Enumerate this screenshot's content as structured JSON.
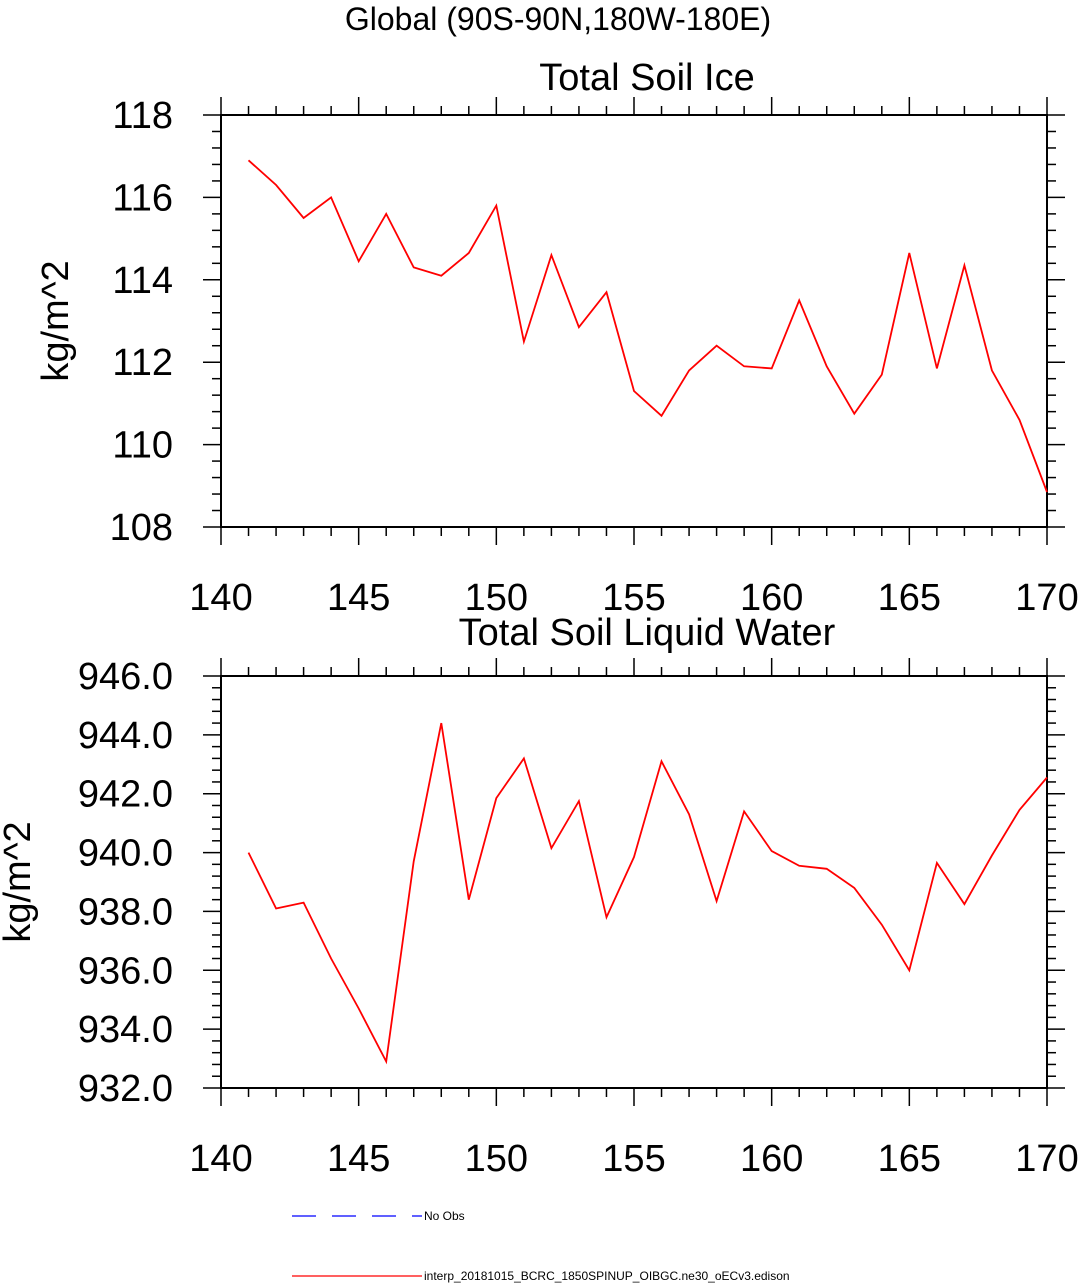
{
  "suptitle": "Global (90S-90N,180W-180E)",
  "colors": {
    "model": "#ff0000",
    "obs": "#0000ff",
    "axis": "#000000"
  },
  "chart_data": [
    {
      "type": "line",
      "title": "Total Soil Ice",
      "xlabel": "",
      "ylabel": "kg/m^2",
      "xlim": [
        140,
        170
      ],
      "ylim": [
        108,
        118
      ],
      "x_major_ticks": [
        140,
        145,
        150,
        155,
        160,
        165,
        170
      ],
      "x_tick_labels": [
        "140",
        "145",
        "150",
        "155",
        "160",
        "165",
        "170"
      ],
      "y_major_ticks": [
        108,
        110,
        112,
        114,
        116,
        118
      ],
      "y_tick_labels": [
        "108",
        "110",
        "112",
        "114",
        "116",
        "118"
      ],
      "y_minor_step": 0.4,
      "x_minor_step": 1,
      "grid": false,
      "series": [
        {
          "name": "interp_20181015_BCRC_1850SPINUP_OIBGC.ne30_oECv3.edison",
          "color": "#ff0000",
          "x": [
            141,
            142,
            143,
            144,
            145,
            146,
            147,
            148,
            149,
            150,
            151,
            152,
            153,
            154,
            155,
            156,
            157,
            158,
            159,
            160,
            161,
            162,
            163,
            164,
            165,
            166,
            167,
            168,
            169,
            170
          ],
          "values": [
            116.9,
            116.3,
            115.5,
            116.0,
            114.45,
            115.6,
            114.3,
            114.1,
            114.65,
            115.8,
            112.5,
            114.6,
            112.85,
            113.7,
            111.3,
            110.7,
            111.8,
            112.4,
            111.9,
            111.85,
            113.5,
            111.9,
            110.75,
            111.7,
            114.65,
            111.85,
            114.35,
            111.8,
            110.6,
            108.85
          ]
        }
      ]
    },
    {
      "type": "line",
      "title": "Total Soil Liquid Water",
      "xlabel": "",
      "ylabel": "kg/m^2",
      "xlim": [
        140,
        170
      ],
      "ylim": [
        932,
        946
      ],
      "x_major_ticks": [
        140,
        145,
        150,
        155,
        160,
        165,
        170
      ],
      "x_tick_labels": [
        "140",
        "145",
        "150",
        "155",
        "160",
        "165",
        "170"
      ],
      "y_major_ticks": [
        932,
        934,
        936,
        938,
        940,
        942,
        944,
        946
      ],
      "y_tick_labels": [
        "932.0",
        "934.0",
        "936.0",
        "938.0",
        "940.0",
        "942.0",
        "944.0",
        "946.0"
      ],
      "y_minor_step": 0.4,
      "x_minor_step": 1,
      "grid": false,
      "series": [
        {
          "name": "interp_20181015_BCRC_1850SPINUP_OIBGC.ne30_oECv3.edison",
          "color": "#ff0000",
          "x": [
            141,
            142,
            143,
            144,
            145,
            146,
            147,
            148,
            149,
            150,
            151,
            152,
            153,
            154,
            155,
            156,
            157,
            158,
            159,
            160,
            161,
            162,
            163,
            164,
            165,
            166,
            167,
            168,
            169,
            170
          ],
          "values": [
            940.0,
            938.1,
            938.3,
            936.4,
            934.7,
            932.9,
            939.7,
            944.4,
            938.4,
            941.85,
            943.2,
            940.15,
            941.75,
            937.8,
            939.85,
            943.1,
            941.3,
            938.35,
            941.4,
            940.05,
            939.55,
            939.45,
            938.8,
            937.55,
            936.0,
            939.65,
            938.25,
            939.9,
            941.45,
            942.55
          ]
        }
      ]
    }
  ],
  "legend": [
    {
      "label": "No Obs",
      "color": "#0000ff",
      "style": "dashed"
    },
    {
      "label": "interp_20181015_BCRC_1850SPINUP_OIBGC.ne30_oECv3.edison",
      "color": "#ff0000",
      "style": "solid"
    }
  ]
}
